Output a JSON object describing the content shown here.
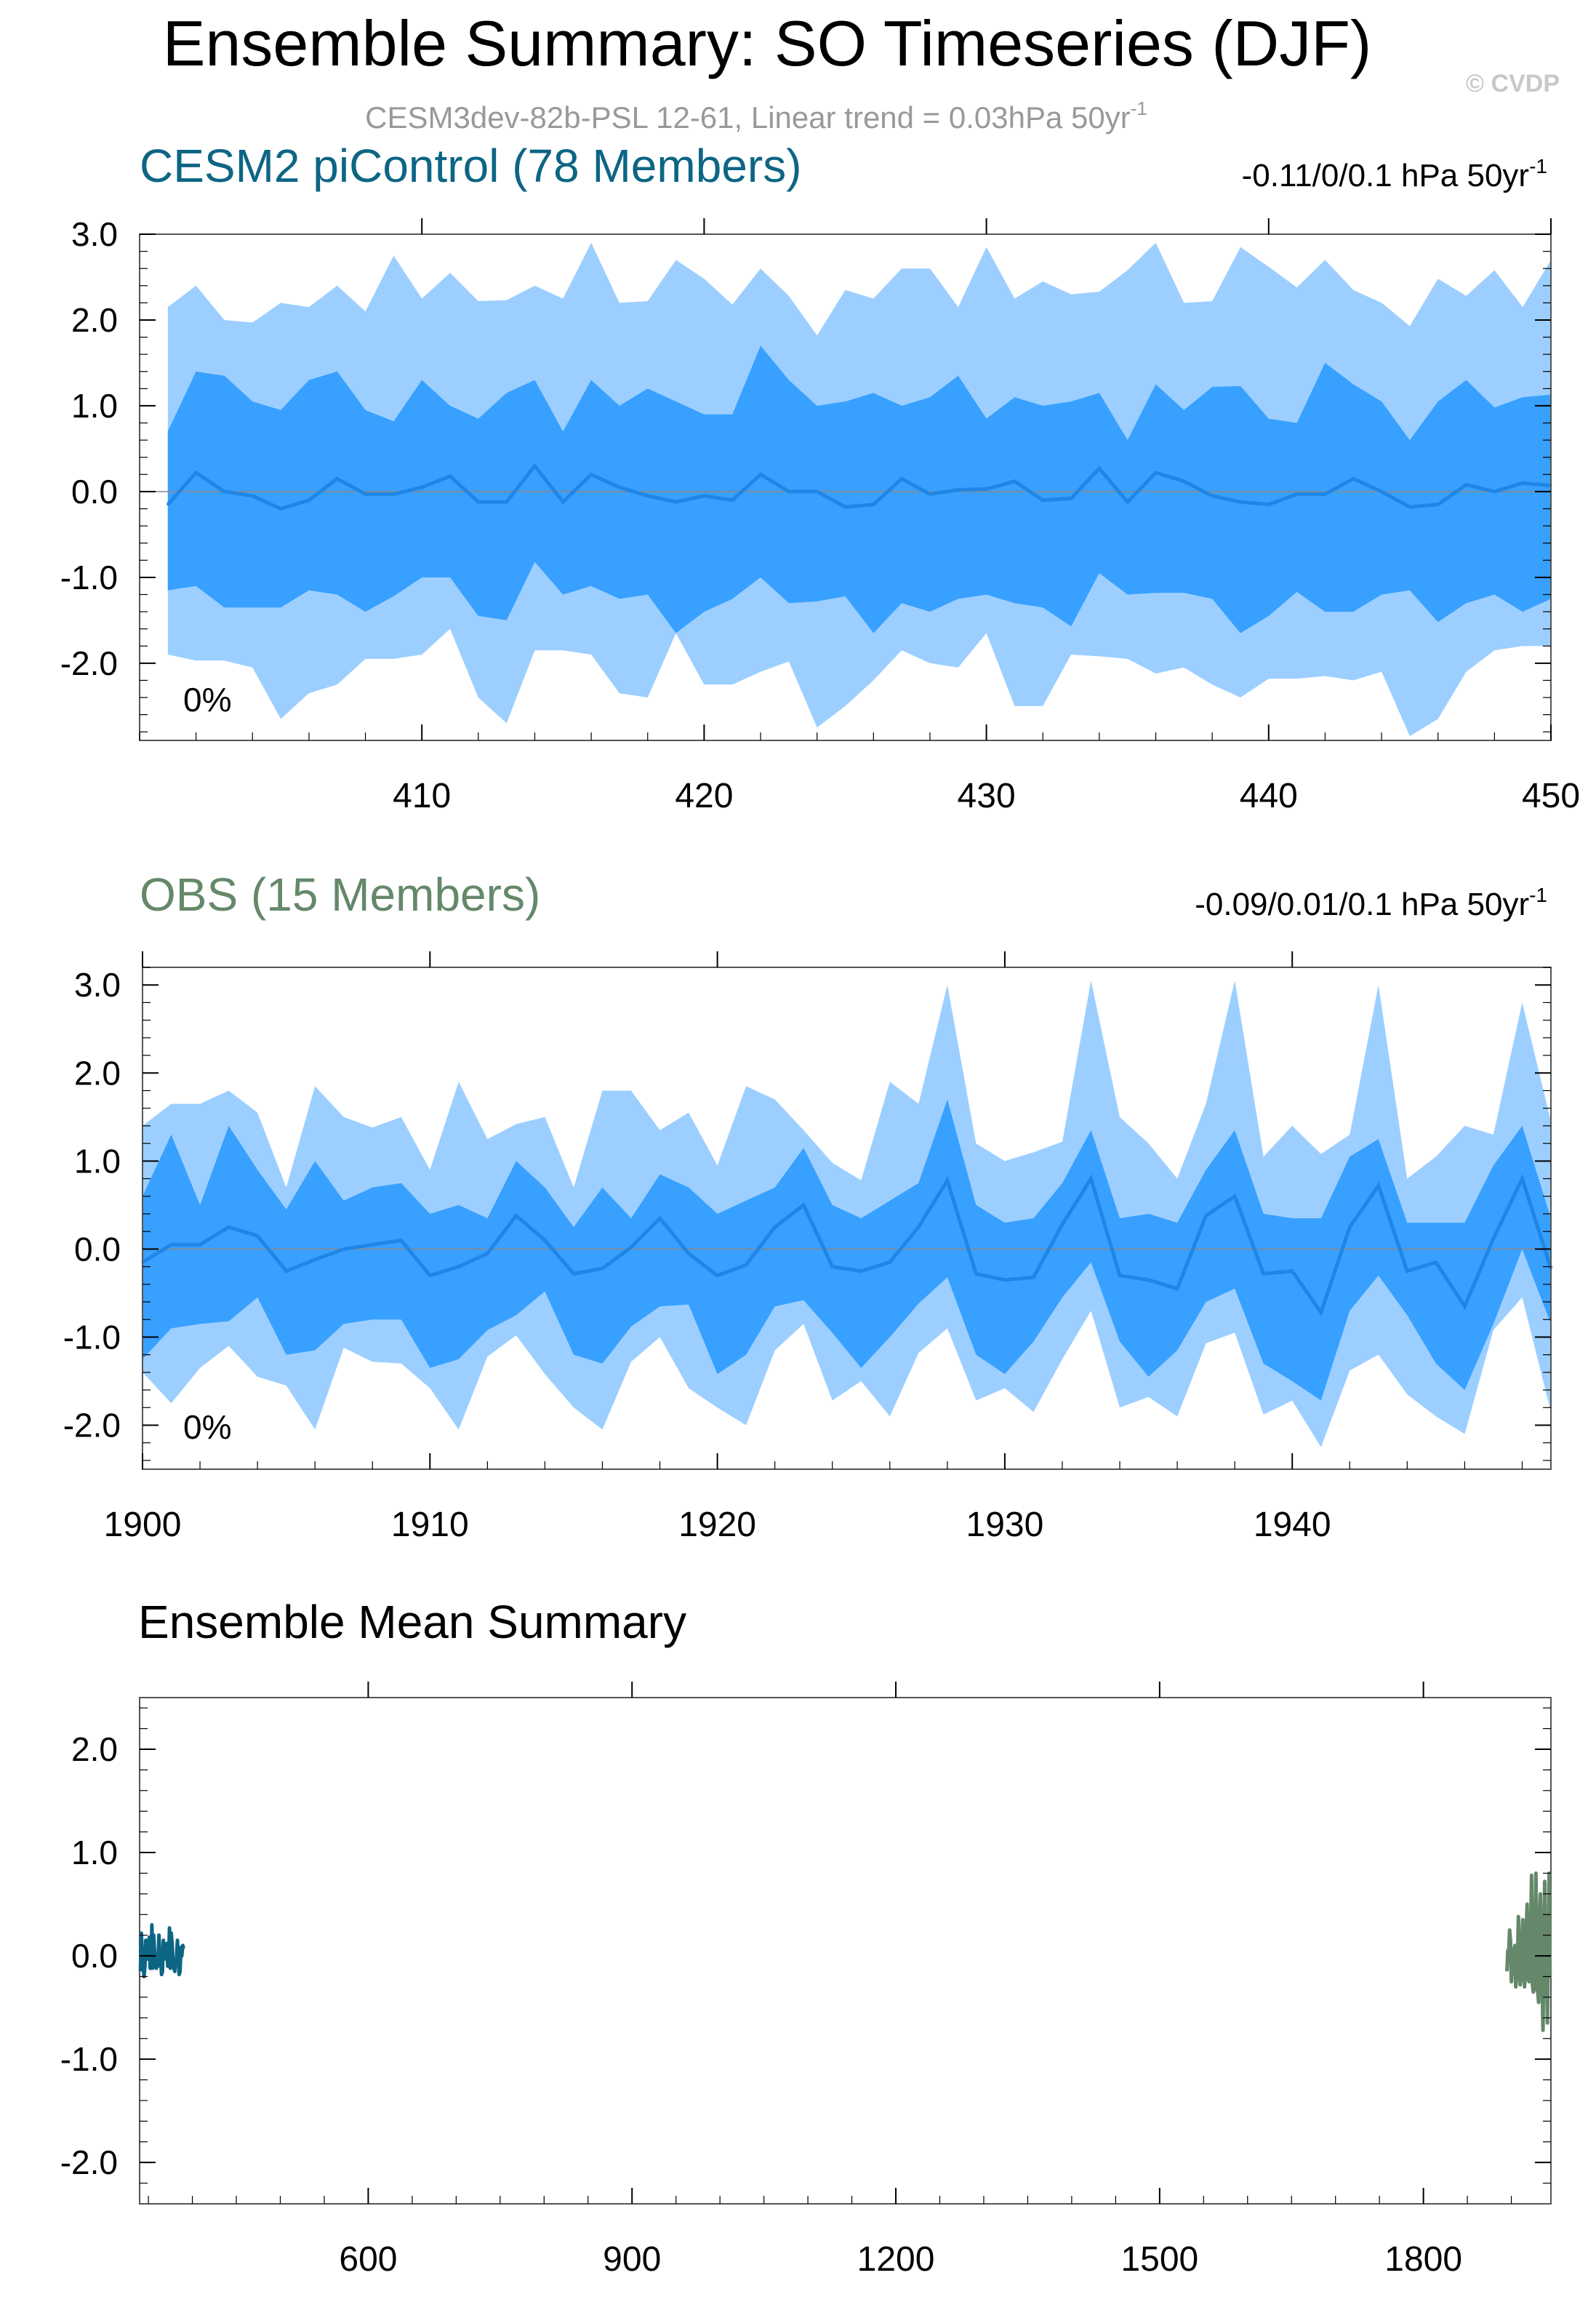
{
  "header": {
    "title": "Ensemble Summary: SO Timeseries (DJF)",
    "subtitle": "CESM3dev-82b-PSL 12-61, Linear trend = 0.03hPa 50yr",
    "subtitle_sup": "-1",
    "credit": "© CVDP"
  },
  "colors": {
    "band_outer": "#9ccfff",
    "band_inner": "#38a0ff",
    "mean_line": "#1f86e6",
    "cesm": "#0d6584",
    "obs": "#65886a",
    "zero_line": "#888888"
  },
  "chart_data": [
    {
      "type": "area",
      "title": "CESM2 piControl (78 Members)",
      "trend_label": "-0.11/0/0.1 hPa 50yr",
      "trend_sup": "-1",
      "percent_label": "0%",
      "xlim": [
        400,
        450
      ],
      "ylim": [
        -2.9,
        3.0
      ],
      "xticks": [
        "410",
        "420",
        "430",
        "440",
        "450"
      ],
      "yticks": [
        "3.0",
        "2.0",
        "1.0",
        "0.0",
        "-1.0",
        "-2.0"
      ],
      "x": [
        401,
        402,
        403,
        404,
        405,
        406,
        407,
        408,
        409,
        410,
        411,
        412,
        413,
        414,
        415,
        416,
        417,
        418,
        419,
        420,
        421,
        422,
        423,
        424,
        425,
        426,
        427,
        428,
        429,
        430,
        431,
        432,
        433,
        434,
        435,
        436,
        437,
        438,
        439,
        440,
        441,
        442,
        443,
        444,
        445,
        446,
        447,
        448,
        449,
        450
      ],
      "series": [
        {
          "role": "outer_upper",
          "values": [
            2.15,
            2.4,
            2.0,
            1.97,
            2.2,
            2.15,
            2.4,
            2.1,
            2.75,
            2.25,
            2.55,
            2.22,
            2.23,
            2.4,
            2.25,
            2.9,
            2.2,
            2.22,
            2.7,
            2.48,
            2.18,
            2.6,
            2.28,
            1.82,
            2.35,
            2.25,
            2.6,
            2.6,
            2.15,
            2.85,
            2.25,
            2.45,
            2.3,
            2.33,
            2.58,
            2.9,
            2.2,
            2.22,
            2.85,
            2.62,
            2.38,
            2.7,
            2.35,
            2.2,
            1.93,
            2.48,
            2.28,
            2.58,
            2.15,
            2.7
          ]
        },
        {
          "role": "inner_upper",
          "values": [
            0.7,
            1.4,
            1.35,
            1.05,
            0.95,
            1.3,
            1.4,
            0.95,
            0.82,
            1.3,
            1.0,
            0.85,
            1.15,
            1.3,
            0.7,
            1.3,
            1.0,
            1.2,
            1.05,
            0.9,
            0.9,
            1.7,
            1.3,
            1.0,
            1.05,
            1.15,
            1.0,
            1.1,
            1.35,
            0.85,
            1.1,
            1.0,
            1.05,
            1.15,
            0.6,
            1.25,
            0.95,
            1.22,
            1.23,
            0.85,
            0.8,
            1.5,
            1.25,
            1.05,
            0.6,
            1.05,
            1.3,
            0.98,
            1.1,
            1.13
          ]
        },
        {
          "role": "mean",
          "values": [
            -0.15,
            0.22,
            0.0,
            -0.05,
            -0.2,
            -0.1,
            0.15,
            -0.03,
            -0.03,
            0.05,
            0.18,
            -0.12,
            -0.12,
            0.3,
            -0.12,
            0.2,
            0.05,
            -0.05,
            -0.12,
            -0.05,
            -0.1,
            0.2,
            0.0,
            0.0,
            -0.18,
            -0.15,
            0.15,
            -0.03,
            0.02,
            0.03,
            0.12,
            -0.1,
            -0.08,
            0.27,
            -0.12,
            0.22,
            0.12,
            -0.05,
            -0.12,
            -0.15,
            -0.03,
            -0.03,
            0.15,
            0.0,
            -0.18,
            -0.15,
            0.08,
            0.0,
            0.1,
            0.07
          ]
        },
        {
          "role": "inner_lower",
          "values": [
            -1.15,
            -1.1,
            -1.35,
            -1.35,
            -1.35,
            -1.15,
            -1.2,
            -1.4,
            -1.22,
            -1.0,
            -1.0,
            -1.45,
            -1.5,
            -0.82,
            -1.2,
            -1.1,
            -1.25,
            -1.2,
            -1.65,
            -1.4,
            -1.25,
            -1.0,
            -1.3,
            -1.28,
            -1.22,
            -1.65,
            -1.3,
            -1.4,
            -1.25,
            -1.2,
            -1.3,
            -1.35,
            -1.57,
            -0.95,
            -1.2,
            -1.18,
            -1.18,
            -1.25,
            -1.65,
            -1.45,
            -1.17,
            -1.4,
            -1.4,
            -1.2,
            -1.15,
            -1.52,
            -1.3,
            -1.2,
            -1.4,
            -1.25
          ]
        },
        {
          "role": "outer_lower",
          "values": [
            -1.9,
            -1.97,
            -1.97,
            -2.05,
            -2.65,
            -2.35,
            -2.25,
            -1.95,
            -1.95,
            -1.9,
            -1.6,
            -2.4,
            -2.7,
            -1.85,
            -1.85,
            -1.9,
            -2.35,
            -2.4,
            -1.65,
            -2.25,
            -2.25,
            -2.1,
            -1.98,
            -2.75,
            -2.5,
            -2.2,
            -1.85,
            -2.0,
            -2.05,
            -1.65,
            -2.5,
            -2.5,
            -1.9,
            -1.92,
            -1.95,
            -2.12,
            -2.05,
            -2.25,
            -2.4,
            -2.18,
            -2.18,
            -2.15,
            -2.2,
            -2.1,
            -2.85,
            -2.65,
            -2.1,
            -1.85,
            -1.8,
            -1.8
          ]
        }
      ]
    },
    {
      "type": "area",
      "title": "OBS (15 Members)",
      "trend_label": "-0.09/0.01/0.1 hPa 50yr",
      "trend_sup": "-1",
      "percent_label": "0%",
      "xlim": [
        1900,
        1949
      ],
      "ylim": [
        -2.5,
        3.2
      ],
      "xticks": [
        "1900",
        "1910",
        "1920",
        "1930",
        "1940"
      ],
      "yticks": [
        "3.0",
        "2.0",
        "1.0",
        "0.0",
        "-1.0",
        "-2.0"
      ],
      "x": [
        1900,
        1901,
        1902,
        1903,
        1904,
        1905,
        1906,
        1907,
        1908,
        1909,
        1910,
        1911,
        1912,
        1913,
        1914,
        1915,
        1916,
        1917,
        1918,
        1919,
        1920,
        1921,
        1922,
        1923,
        1924,
        1925,
        1926,
        1927,
        1928,
        1929,
        1930,
        1931,
        1932,
        1933,
        1934,
        1935,
        1936,
        1937,
        1938,
        1939,
        1940,
        1941,
        1942,
        1943,
        1944,
        1945,
        1946,
        1947,
        1948,
        1949
      ],
      "series": [
        {
          "role": "outer_upper",
          "values": [
            1.4,
            1.65,
            1.65,
            1.8,
            1.55,
            0.7,
            1.85,
            1.5,
            1.38,
            1.5,
            0.9,
            1.9,
            1.25,
            1.42,
            1.5,
            0.7,
            1.8,
            1.8,
            1.35,
            1.55,
            0.95,
            1.85,
            1.7,
            1.35,
            0.98,
            0.78,
            1.9,
            1.65,
            3.0,
            1.2,
            1.0,
            1.1,
            1.22,
            3.05,
            1.5,
            1.2,
            0.8,
            1.65,
            3.05,
            1.05,
            1.4,
            1.08,
            1.3,
            3.0,
            0.8,
            1.05,
            1.4,
            1.3,
            2.8,
            1.45
          ]
        },
        {
          "role": "inner_upper",
          "values": [
            0.6,
            1.3,
            0.5,
            1.4,
            0.9,
            0.45,
            1.0,
            0.55,
            0.7,
            0.75,
            0.4,
            0.5,
            0.35,
            1.0,
            0.7,
            0.25,
            0.7,
            0.35,
            0.85,
            0.7,
            0.4,
            0.55,
            0.7,
            1.15,
            0.5,
            0.35,
            0.55,
            0.75,
            1.7,
            0.5,
            0.3,
            0.35,
            0.75,
            1.35,
            0.35,
            0.4,
            0.3,
            0.9,
            1.35,
            0.4,
            0.35,
            0.35,
            1.05,
            1.25,
            0.3,
            0.3,
            0.3,
            0.95,
            1.4,
            0.35
          ]
        },
        {
          "role": "mean",
          "values": [
            -0.15,
            0.05,
            0.05,
            0.25,
            0.15,
            -0.25,
            -0.12,
            0.0,
            0.05,
            0.1,
            -0.3,
            -0.2,
            -0.05,
            0.38,
            0.1,
            -0.28,
            -0.22,
            0.02,
            0.35,
            -0.05,
            -0.3,
            -0.18,
            0.25,
            0.5,
            -0.2,
            -0.25,
            -0.15,
            0.25,
            0.78,
            -0.28,
            -0.35,
            -0.32,
            0.28,
            0.8,
            -0.3,
            -0.35,
            -0.45,
            0.38,
            0.6,
            -0.28,
            -0.25,
            -0.72,
            0.25,
            0.72,
            -0.25,
            -0.15,
            -0.65,
            0.12,
            0.8,
            -0.22
          ]
        },
        {
          "role": "inner_lower",
          "values": [
            -1.25,
            -0.9,
            -0.85,
            -0.82,
            -0.55,
            -1.2,
            -1.15,
            -0.85,
            -0.8,
            -0.8,
            -1.35,
            -1.25,
            -0.92,
            -0.75,
            -0.48,
            -1.2,
            -1.3,
            -0.88,
            -0.65,
            -0.63,
            -1.42,
            -1.2,
            -0.65,
            -0.58,
            -0.95,
            -1.35,
            -1.0,
            -0.62,
            -0.32,
            -1.2,
            -1.42,
            -1.05,
            -0.55,
            -0.15,
            -1.05,
            -1.45,
            -1.15,
            -0.6,
            -0.45,
            -1.3,
            -1.5,
            -1.72,
            -0.7,
            -0.3,
            -0.75,
            -1.3,
            -1.6,
            -0.85,
            0.0,
            -0.85
          ]
        },
        {
          "role": "outer_lower",
          "values": [
            -1.4,
            -1.75,
            -1.35,
            -1.1,
            -1.45,
            -1.55,
            -2.05,
            -1.12,
            -1.28,
            -1.3,
            -1.58,
            -2.05,
            -1.22,
            -0.98,
            -1.42,
            -1.8,
            -2.05,
            -1.28,
            -1.0,
            -1.58,
            -1.8,
            -2.0,
            -1.15,
            -0.85,
            -1.72,
            -1.5,
            -1.9,
            -1.18,
            -0.9,
            -1.72,
            -1.58,
            -1.85,
            -1.25,
            -0.7,
            -1.8,
            -1.68,
            -1.9,
            -1.07,
            -0.95,
            -1.88,
            -1.72,
            -2.25,
            -1.38,
            -1.2,
            -1.65,
            -1.9,
            -2.1,
            -0.92,
            -0.55,
            -1.85
          ]
        }
      ]
    },
    {
      "type": "line",
      "title": "Ensemble Mean Summary",
      "xlim": [
        340,
        1945
      ],
      "ylim": [
        -2.4,
        2.5
      ],
      "xticks": [
        "600",
        "900",
        "1200",
        "1500",
        "1800"
      ],
      "yticks": [
        "2.0",
        "1.0",
        "0.0",
        "-1.0",
        "-2.0"
      ],
      "series": [
        {
          "name": "CESM2 piControl (78 Members)",
          "x_start": 341,
          "x_end": 390,
          "values": [
            -0.15,
            0.22,
            0.0,
            -0.05,
            -0.2,
            -0.1,
            0.15,
            -0.03,
            -0.03,
            0.05,
            0.18,
            -0.12,
            -0.12,
            0.3,
            -0.12,
            0.2,
            0.05,
            -0.05,
            -0.12,
            -0.05,
            -0.1,
            0.2,
            0.0,
            0.0,
            -0.18,
            -0.15,
            0.15,
            -0.03,
            0.02,
            0.03,
            0.12,
            -0.1,
            -0.08,
            0.27,
            -0.12,
            0.22,
            0.12,
            -0.05,
            -0.12,
            -0.15,
            -0.03,
            -0.03,
            0.15,
            0.0,
            -0.18,
            -0.15,
            0.08,
            0.0,
            0.1,
            0.07
          ]
        },
        {
          "name": "OBS (15 Members)",
          "x_start": 1895,
          "x_end": 1944,
          "values": [
            -0.15,
            0.05,
            0.05,
            0.25,
            0.15,
            -0.25,
            -0.12,
            0.0,
            0.05,
            0.1,
            -0.3,
            -0.2,
            -0.05,
            0.38,
            0.1,
            -0.28,
            -0.22,
            0.02,
            0.35,
            -0.05,
            -0.3,
            -0.18,
            0.25,
            0.5,
            -0.2,
            -0.25,
            -0.15,
            0.25,
            0.78,
            -0.28,
            -0.35,
            -0.32,
            0.28,
            0.8,
            -0.3,
            -0.35,
            -0.45,
            0.38,
            0.6,
            -0.28,
            -0.25,
            -0.72,
            0.25,
            0.72,
            -0.25,
            -0.15,
            -0.65,
            0.12,
            0.8,
            -0.22
          ]
        }
      ]
    }
  ]
}
